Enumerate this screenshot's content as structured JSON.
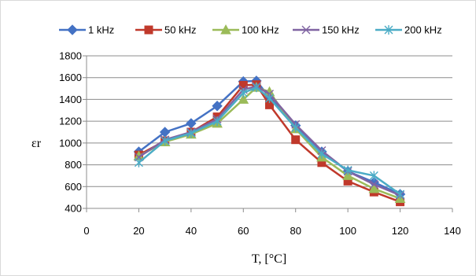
{
  "chart_data": {
    "type": "line",
    "xlabel": "T, [°C]",
    "ylabel": "εr",
    "xlim": [
      0,
      140
    ],
    "ylim": [
      400,
      1800
    ],
    "x_ticks": [
      0,
      20,
      40,
      60,
      80,
      100,
      120,
      140
    ],
    "y_ticks": [
      400,
      600,
      800,
      1000,
      1200,
      1400,
      1600,
      1800
    ],
    "grid": "horizontal",
    "legend_position": "top",
    "x": [
      20,
      30,
      40,
      50,
      60,
      65,
      70,
      80,
      90,
      100,
      110,
      120
    ],
    "series": [
      {
        "name": "1 kHz",
        "color": "#4472C4",
        "marker": "diamond",
        "values": [
          920,
          1100,
          1180,
          1340,
          1565,
          1570,
          1420,
          1160,
          920,
          740,
          640,
          530
        ]
      },
      {
        "name": "50 kHz",
        "color": "#C0392B",
        "marker": "square",
        "values": [
          890,
          1020,
          1100,
          1240,
          1530,
          1535,
          1350,
          1030,
          820,
          650,
          550,
          460
        ]
      },
      {
        "name": "100 kHz",
        "color": "#9BBB59",
        "marker": "triangle",
        "values": [
          880,
          1010,
          1080,
          1180,
          1400,
          1510,
          1470,
          1130,
          870,
          700,
          580,
          490
        ]
      },
      {
        "name": "150 kHz",
        "color": "#8064A2",
        "marker": "x",
        "values": [
          870,
          1030,
          1100,
          1220,
          1490,
          1520,
          1450,
          1170,
          930,
          740,
          620,
          520
        ]
      },
      {
        "name": "200 kHz",
        "color": "#4BACC6",
        "marker": "asterisk",
        "values": [
          820,
          1020,
          1090,
          1200,
          1460,
          1510,
          1410,
          1140,
          900,
          750,
          700,
          530
        ]
      }
    ]
  }
}
